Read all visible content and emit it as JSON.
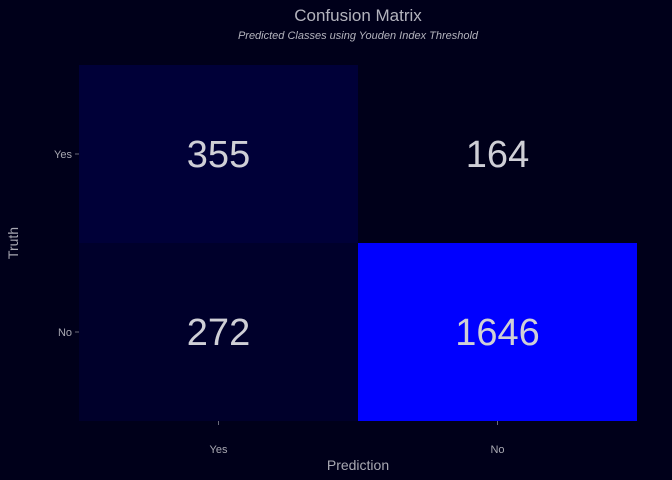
{
  "chart_data": {
    "type": "heatmap",
    "title": "Confusion Matrix",
    "subtitle": "Predicted Classes using Youden Index Threshold",
    "xlabel": "Prediction",
    "ylabel": "Truth",
    "x_categories": [
      "Yes",
      "No"
    ],
    "y_categories": [
      "Yes",
      "No"
    ],
    "cells": [
      {
        "prediction": "Yes",
        "truth": "Yes",
        "value": 355
      },
      {
        "prediction": "No",
        "truth": "Yes",
        "value": 164
      },
      {
        "prediction": "Yes",
        "truth": "No",
        "value": 272
      },
      {
        "prediction": "No",
        "truth": "No",
        "value": 1646
      }
    ],
    "color_low": "#00001a",
    "color_high": "#0000ff",
    "background": "#00001a",
    "text_color": "#cfcfd6",
    "grid": false,
    "legend": "none"
  }
}
